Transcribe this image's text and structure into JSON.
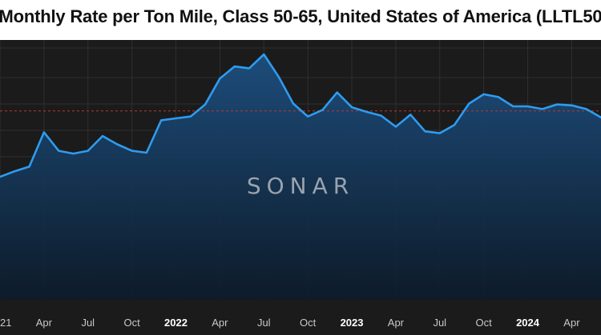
{
  "chart_data": {
    "type": "area",
    "title": "Monthly Rate per Ton Mile, Class 50-65, United States of America (LLTL50",
    "watermark": "SONAR",
    "x_range": [
      0,
      41
    ],
    "ylim": [
      0,
      100
    ],
    "reference_value": 69.5,
    "x": [
      0,
      1,
      2,
      3,
      4,
      5,
      6,
      7,
      8,
      9,
      10,
      11,
      12,
      13,
      14,
      15,
      16,
      17,
      18,
      19,
      20,
      21,
      22,
      23,
      24,
      25,
      26,
      27,
      28,
      29,
      30,
      31,
      32,
      33,
      34,
      35,
      36,
      37,
      38,
      39,
      40,
      41
    ],
    "values": [
      34,
      37,
      39.5,
      58,
      48,
      46.5,
      48,
      56,
      51.5,
      48,
      47,
      64.5,
      65.5,
      66.5,
      73,
      87,
      93.5,
      92.5,
      100,
      88,
      73.5,
      66.5,
      70,
      79.5,
      71.5,
      69,
      67,
      61,
      67.5,
      58.5,
      57.5,
      62,
      73.5,
      78.5,
      77,
      72,
      72,
      70.5,
      73,
      72.5,
      70.5,
      66
    ],
    "xtick_labels": [
      {
        "x": 0,
        "label": "21",
        "bold": false
      },
      {
        "x": 3,
        "label": "Apr",
        "bold": false
      },
      {
        "x": 6,
        "label": "Jul",
        "bold": false
      },
      {
        "x": 9,
        "label": "Oct",
        "bold": false
      },
      {
        "x": 12,
        "label": "2022",
        "bold": true
      },
      {
        "x": 15,
        "label": "Apr",
        "bold": false
      },
      {
        "x": 18,
        "label": "Jul",
        "bold": false
      },
      {
        "x": 21,
        "label": "Oct",
        "bold": false
      },
      {
        "x": 24,
        "label": "2023",
        "bold": true
      },
      {
        "x": 27,
        "label": "Apr",
        "bold": false
      },
      {
        "x": 30,
        "label": "Jul",
        "bold": false
      },
      {
        "x": 33,
        "label": "Oct",
        "bold": false
      },
      {
        "x": 36,
        "label": "2024",
        "bold": true
      },
      {
        "x": 39,
        "label": "Apr",
        "bold": false
      }
    ],
    "grid": true,
    "colors": {
      "line": "#2f9bef",
      "fill_top": "#1d4f80",
      "fill_bottom": "#0c1b2b",
      "reference": "#c0392b",
      "grid": "#2f2f2f",
      "background": "#1b1b1b"
    }
  }
}
